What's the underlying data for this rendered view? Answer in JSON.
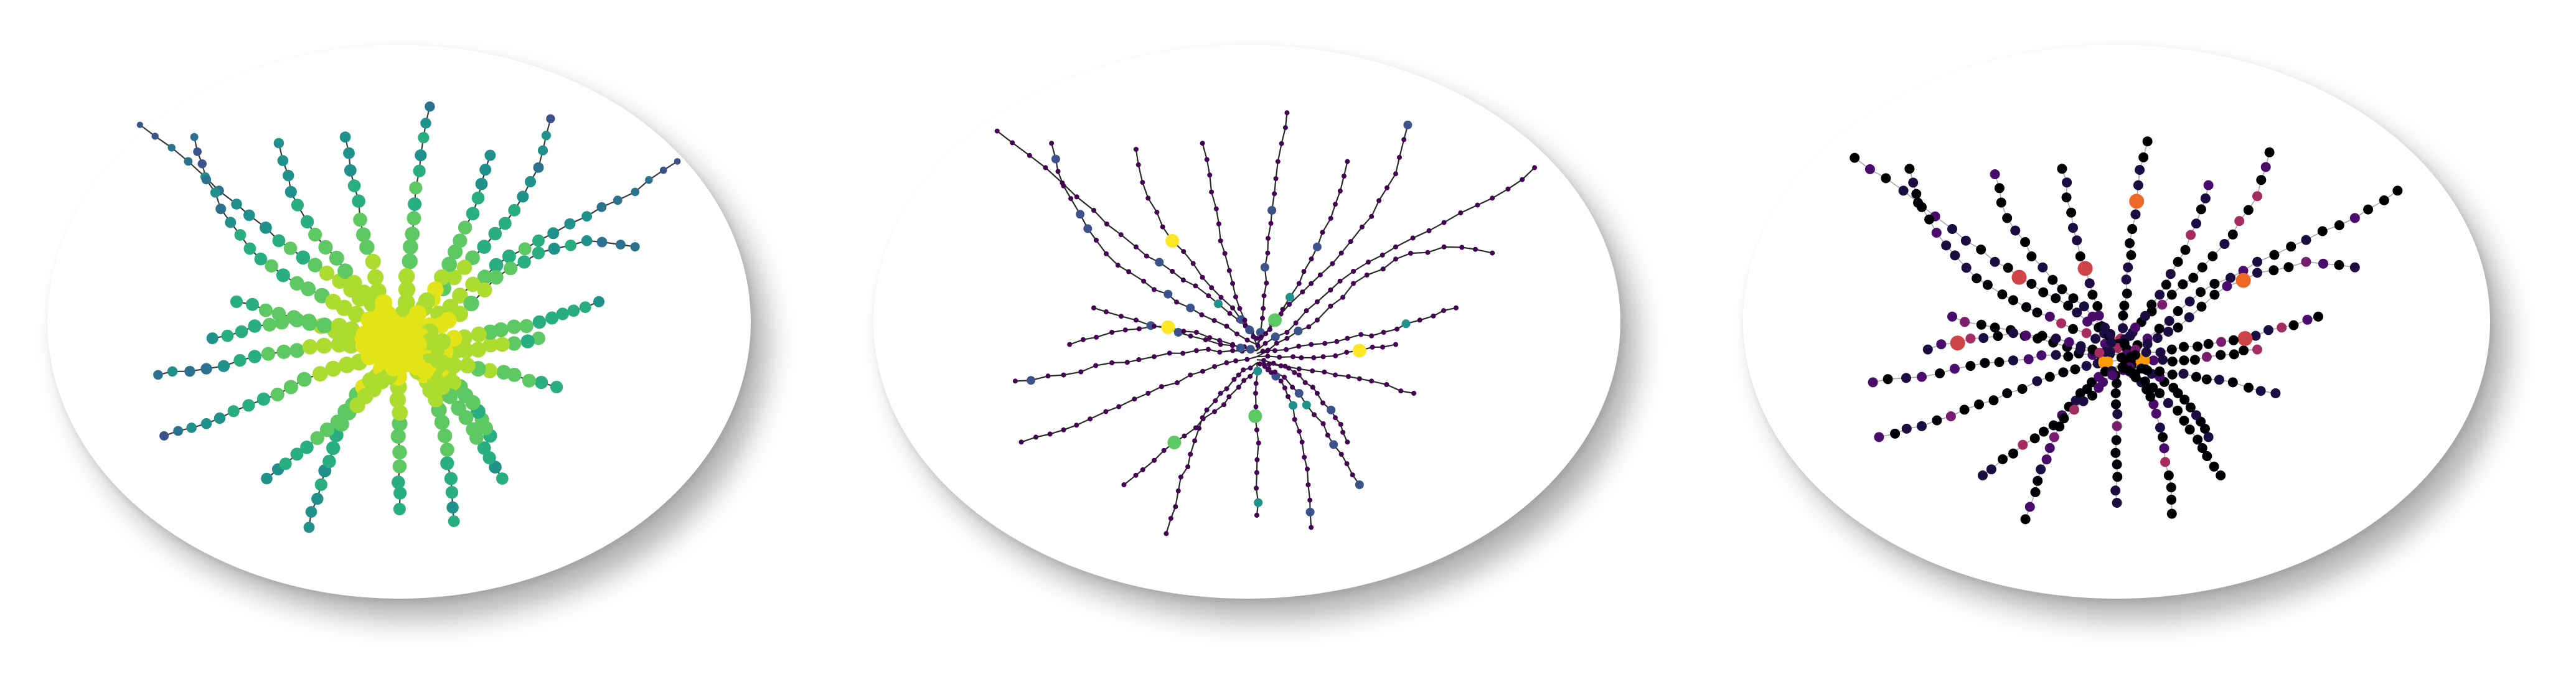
{
  "figure": {
    "panels": [
      {
        "name": "network-panel-1",
        "colormap": "viridis",
        "edge_color": "#3a3a3a",
        "palette": [
          "#3b528b",
          "#2c728e",
          "#21918c",
          "#28ae80",
          "#5ec962",
          "#addc30",
          "#e3e418"
        ]
      },
      {
        "name": "network-panel-2",
        "colormap": "viridis",
        "edge_color": "#2a2a2a",
        "palette": [
          "#440154",
          "#3b528b",
          "#21918c",
          "#5ec962",
          "#fde725"
        ]
      },
      {
        "name": "network-panel-3",
        "colormap": "inferno",
        "edge_color": "#a8a8a8",
        "palette": [
          "#000004",
          "#1b0c41",
          "#4a0c6b",
          "#781c6d",
          "#a52c60",
          "#cf4446",
          "#ed6925",
          "#fb9b06"
        ]
      }
    ]
  }
}
